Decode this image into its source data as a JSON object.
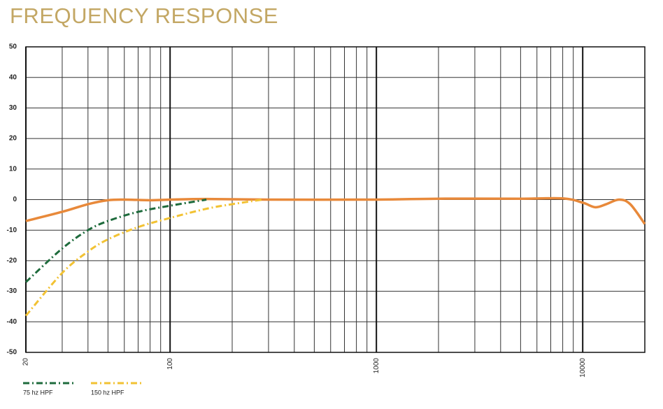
{
  "chart_data": {
    "type": "line",
    "title": "FREQUENCY RESPONSE",
    "xscale": "log",
    "xlim": [
      20,
      20000
    ],
    "xticks": [
      20,
      100,
      1000,
      10000
    ],
    "ylim": [
      -50,
      50
    ],
    "yticks": [
      -50,
      -40,
      -30,
      -20,
      -10,
      0,
      10,
      20,
      30,
      40,
      50
    ],
    "grid": true,
    "legend": "bottom-left",
    "series": [
      {
        "color": "#e8893a",
        "style": "solid",
        "x": [
          20,
          30,
          40,
          50,
          60,
          80,
          100,
          150,
          300,
          1000,
          2000,
          5000,
          8000,
          10000,
          11500,
          13000,
          15000,
          17000,
          20000
        ],
        "values": [
          -7,
          -4,
          -1.5,
          -0.2,
          0,
          -0.2,
          0,
          0.2,
          0,
          0,
          0.3,
          0.3,
          0.4,
          -1,
          -2.5,
          -1.5,
          0,
          -1.5,
          -8
        ]
      },
      {
        "name": "75 hz HPF",
        "color": "#1e6b3c",
        "style": "dashdot",
        "x": [
          20,
          30,
          40,
          50,
          70,
          100,
          150
        ],
        "values": [
          -27,
          -16,
          -10,
          -7,
          -4,
          -2,
          0
        ]
      },
      {
        "name": "150 hz HPF",
        "color": "#f2c233",
        "style": "dashdot",
        "x": [
          20,
          30,
          40,
          50,
          70,
          100,
          150,
          200,
          280
        ],
        "values": [
          -38,
          -24,
          -17,
          -13,
          -9,
          -6,
          -3,
          -1.5,
          0
        ]
      }
    ]
  }
}
